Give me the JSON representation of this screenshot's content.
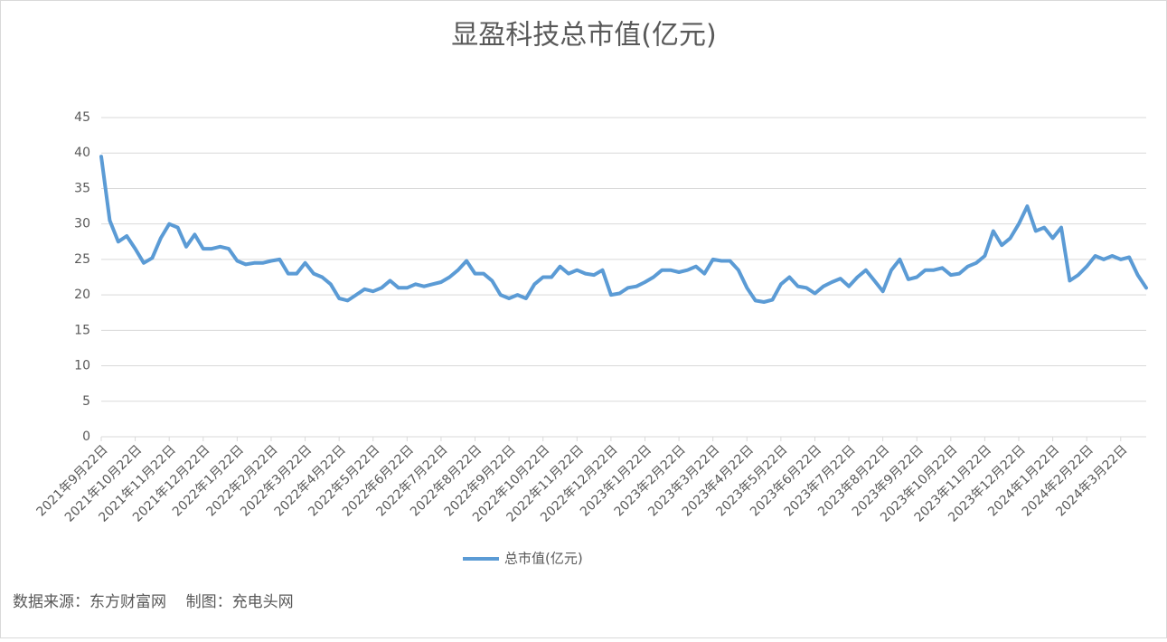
{
  "chart_data": {
    "type": "line",
    "title": "显盈科技总市值(亿元)",
    "categories": [
      "2021年9月22日",
      null,
      null,
      null,
      "2021年10月22日",
      null,
      null,
      null,
      "2021年11月22日",
      null,
      null,
      null,
      "2021年12月22日",
      null,
      null,
      null,
      "2022年1月22日",
      null,
      null,
      null,
      "2022年2月22日",
      null,
      null,
      null,
      "2022年3月22日",
      null,
      null,
      null,
      "2022年4月22日",
      null,
      null,
      null,
      "2022年5月22日",
      null,
      null,
      null,
      "2022年6月22日",
      null,
      null,
      null,
      "2022年7月22日",
      null,
      null,
      null,
      "2022年8月22日",
      null,
      null,
      null,
      "2022年9月22日",
      null,
      null,
      null,
      "2022年10月22日",
      null,
      null,
      null,
      "2022年11月22日",
      null,
      null,
      null,
      "2022年12月22日",
      null,
      null,
      null,
      "2023年1月22日",
      null,
      null,
      null,
      "2023年2月22日",
      null,
      null,
      null,
      "2023年3月22日",
      null,
      null,
      null,
      "2023年4月22日",
      null,
      null,
      null,
      "2023年5月22日",
      null,
      null,
      null,
      "2023年6月22日",
      null,
      null,
      null,
      "2023年7月22日",
      null,
      null,
      null,
      "2023年8月22日",
      null,
      null,
      null,
      "2023年9月22日",
      null,
      null,
      null,
      "2023年10月22日",
      null,
      null,
      null,
      "2023年11月22日",
      null,
      null,
      null,
      "2023年12月22日",
      null,
      null,
      null,
      "2024年1月22日",
      null,
      null,
      null,
      "2024年2月22日",
      null,
      null,
      null,
      "2024年3月22日",
      null,
      null,
      null
    ],
    "series": [
      {
        "name": "总市值(亿元)",
        "color": "#5b9bd5",
        "values": [
          39.5,
          30.5,
          27.5,
          28.3,
          26.5,
          24.5,
          25.2,
          28,
          30,
          29.5,
          26.8,
          28.5,
          26.5,
          26.5,
          26.8,
          26.5,
          24.8,
          24.3,
          24.5,
          24.5,
          24.8,
          25,
          23,
          23,
          24.5,
          23,
          22.5,
          21.5,
          19.5,
          19.2,
          20,
          20.8,
          20.5,
          21,
          22,
          21,
          21,
          21.5,
          21.2,
          21.5,
          21.8,
          22.5,
          23.5,
          24.8,
          23,
          23,
          22,
          20,
          19.5,
          20,
          19.5,
          21.5,
          22.5,
          22.5,
          24,
          23,
          23.5,
          23,
          22.8,
          23.5,
          20,
          20.2,
          21,
          21.2,
          21.8,
          22.5,
          23.5,
          23.5,
          23.2,
          23.5,
          24,
          23,
          25,
          24.8,
          24.8,
          23.5,
          21,
          19.2,
          19,
          19.3,
          21.5,
          22.5,
          21.2,
          21,
          20.2,
          21.2,
          21.8,
          22.3,
          21.2,
          22.5,
          23.5,
          22,
          20.5,
          23.5,
          25,
          22.2,
          22.5,
          23.5,
          23.5,
          23.8,
          22.8,
          23,
          24,
          24.5,
          25.5,
          29,
          27,
          28,
          30,
          32.5,
          29,
          29.5,
          28,
          29.5,
          22,
          22.8,
          24,
          25.5,
          25,
          25.5,
          25,
          25.3,
          22.8,
          21
        ]
      }
    ],
    "ylim": [
      0,
      45
    ],
    "yticks": [
      0,
      5,
      10,
      15,
      20,
      25,
      30,
      35,
      40,
      45
    ],
    "grid": true,
    "legend": "bottom"
  },
  "footer": "数据来源：东方财富网    制图：充电头网"
}
